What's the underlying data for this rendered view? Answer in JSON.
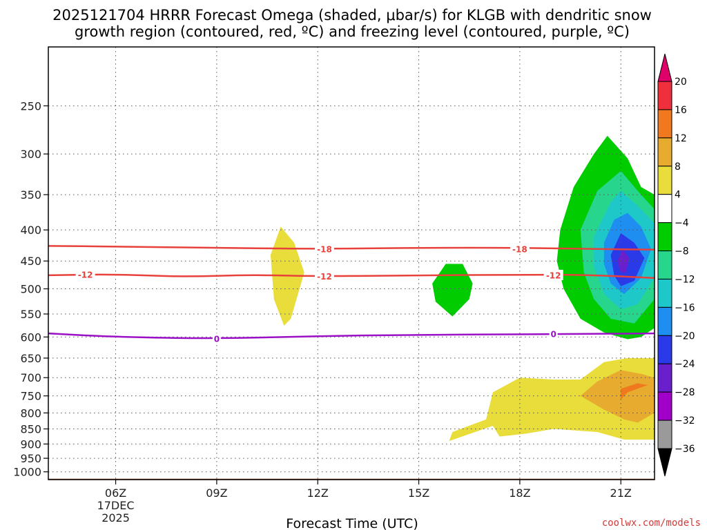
{
  "title_line1": "2025121704 HRRR Forecast Omega (shaded, μbar/s) for KLGB with dendritic snow",
  "title_line2": "growth region (contoured, red, ºC) and freezing level (contoured, purple, ºC)",
  "credit": "coolwx.com/models",
  "chart_data": {
    "type": "time-height cross-section",
    "xlabel": "Forecast Time (UTC)",
    "x_ticks": [
      {
        "hour": 6,
        "label": "06Z",
        "date_line1": "17DEC",
        "date_line2": "2025"
      },
      {
        "hour": 9,
        "label": "09Z"
      },
      {
        "hour": 12,
        "label": "12Z"
      },
      {
        "hour": 15,
        "label": "15Z"
      },
      {
        "hour": 18,
        "label": "18Z"
      },
      {
        "hour": 21,
        "label": "21Z"
      }
    ],
    "xlim": [
      4,
      22
    ],
    "y_scale": "log",
    "y_reversed": true,
    "ylim": [
      1030,
      200
    ],
    "y_ticks": [
      250,
      300,
      350,
      400,
      450,
      500,
      550,
      600,
      650,
      700,
      750,
      800,
      850,
      900,
      950,
      1000
    ],
    "grid": true,
    "colorbar": {
      "levels": [
        20,
        16,
        12,
        8,
        4,
        -4,
        -8,
        -12,
        -16,
        -20,
        -24,
        -28,
        -32,
        -36
      ],
      "colors": [
        "#ef2f3c",
        "#f0781e",
        "#e7ab2f",
        "#e8dd3b",
        "#ffffff",
        "#00cc00",
        "#28d58c",
        "#1ec8c8",
        "#1e8ff0",
        "#2a3ae8",
        "#6a1fcc",
        "#a000c8",
        "#9a9a9a"
      ],
      "top_extend_color": "#e0006a",
      "bottom_extend_color": "#000000"
    },
    "ground_color": "#a0522d",
    "omega_regions": [
      {
        "value_range": [
          4,
          8
        ],
        "points": [
          [
            10.6,
            440
          ],
          [
            10.9,
            395
          ],
          [
            11.3,
            420
          ],
          [
            11.6,
            470
          ],
          [
            11.2,
            560
          ],
          [
            11.0,
            575
          ],
          [
            10.7,
            520
          ]
        ]
      },
      {
        "value_range": [
          -8,
          -4
        ],
        "points": [
          [
            15.4,
            490
          ],
          [
            15.8,
            455
          ],
          [
            16.3,
            455
          ],
          [
            16.6,
            490
          ],
          [
            16.5,
            520
          ],
          [
            16.0,
            555
          ],
          [
            15.5,
            525
          ]
        ]
      },
      {
        "value_range": [
          -8,
          -4
        ],
        "points": [
          [
            19.2,
            400
          ],
          [
            19.6,
            340
          ],
          [
            20.2,
            300
          ],
          [
            20.6,
            280
          ],
          [
            21.2,
            305
          ],
          [
            21.6,
            340
          ],
          [
            22,
            350
          ],
          [
            22,
            580
          ],
          [
            21.6,
            600
          ],
          [
            21.2,
            605
          ],
          [
            20.5,
            590
          ],
          [
            19.8,
            560
          ],
          [
            19.3,
            500
          ],
          [
            19.1,
            450
          ]
        ]
      },
      {
        "value_range": [
          -12,
          -8
        ],
        "points": [
          [
            19.8,
            400
          ],
          [
            20.3,
            345
          ],
          [
            21.0,
            320
          ],
          [
            21.6,
            350
          ],
          [
            22,
            370
          ],
          [
            22,
            520
          ],
          [
            21.4,
            570
          ],
          [
            20.7,
            560
          ],
          [
            20.2,
            520
          ],
          [
            19.9,
            470
          ]
        ]
      },
      {
        "value_range": [
          -16,
          -12
        ],
        "points": [
          [
            20.2,
            410
          ],
          [
            20.7,
            360
          ],
          [
            21.0,
            345
          ],
          [
            21.5,
            365
          ],
          [
            22,
            390
          ],
          [
            22,
            480
          ],
          [
            21.5,
            530
          ],
          [
            21.0,
            540
          ],
          [
            20.5,
            510
          ],
          [
            20.2,
            460
          ]
        ]
      },
      {
        "value_range": [
          -20,
          -16
        ],
        "points": [
          [
            20.5,
            420
          ],
          [
            20.8,
            385
          ],
          [
            21.2,
            375
          ],
          [
            21.6,
            395
          ],
          [
            21.9,
            430
          ],
          [
            21.6,
            480
          ],
          [
            21.1,
            510
          ],
          [
            20.7,
            490
          ],
          [
            20.5,
            455
          ]
        ]
      },
      {
        "value_range": [
          -24,
          -20
        ],
        "points": [
          [
            20.7,
            440
          ],
          [
            21.0,
            405
          ],
          [
            21.4,
            420
          ],
          [
            21.7,
            445
          ],
          [
            21.4,
            485
          ],
          [
            21.0,
            495
          ],
          [
            20.8,
            475
          ]
        ]
      },
      {
        "value_range": [
          -28,
          -24
        ],
        "points": [
          [
            20.9,
            450
          ],
          [
            21.05,
            430
          ],
          [
            21.25,
            445
          ],
          [
            21.15,
            470
          ],
          [
            21.0,
            470
          ]
        ]
      },
      {
        "value_range": [
          4,
          8
        ],
        "points": [
          [
            15.9,
            890
          ],
          [
            17.2,
            840
          ],
          [
            17.4,
            875
          ],
          [
            18.2,
            865
          ],
          [
            19.0,
            850
          ],
          [
            20.3,
            860
          ],
          [
            21.1,
            885
          ],
          [
            22,
            885
          ],
          [
            22,
            650
          ],
          [
            21.2,
            650
          ],
          [
            20.5,
            660
          ],
          [
            19.8,
            705
          ],
          [
            19.0,
            705
          ],
          [
            18.0,
            700
          ],
          [
            17.2,
            740
          ],
          [
            17.0,
            820
          ],
          [
            16.0,
            860
          ]
        ]
      },
      {
        "value_range": [
          8,
          12
        ],
        "points": [
          [
            19.8,
            750
          ],
          [
            20.3,
            710
          ],
          [
            21.0,
            680
          ],
          [
            21.6,
            690
          ],
          [
            22,
            700
          ],
          [
            22,
            800
          ],
          [
            21.5,
            830
          ],
          [
            21.1,
            820
          ],
          [
            20.5,
            790
          ]
        ]
      },
      {
        "value_range": [
          12,
          16
        ],
        "points": [
          [
            21.0,
            730
          ],
          [
            21.5,
            715
          ],
          [
            21.8,
            720
          ],
          [
            21.2,
            740
          ],
          [
            21.0,
            760
          ]
        ]
      }
    ],
    "dendritic_contours": [
      {
        "value": -18,
        "points": [
          [
            4,
            425
          ],
          [
            6,
            426
          ],
          [
            9,
            428
          ],
          [
            12,
            430
          ],
          [
            15,
            428
          ],
          [
            18,
            428
          ],
          [
            20,
            430
          ],
          [
            22,
            431
          ]
        ],
        "labels": [
          {
            "x": 12.2,
            "y": 430
          },
          {
            "x": 18,
            "y": 430
          }
        ]
      },
      {
        "value": -12,
        "points": [
          [
            4,
            475
          ],
          [
            6,
            473
          ],
          [
            8,
            478
          ],
          [
            10,
            474
          ],
          [
            12,
            477
          ],
          [
            15,
            475
          ],
          [
            18,
            474
          ],
          [
            20,
            474
          ],
          [
            22,
            480
          ]
        ],
        "labels": [
          {
            "x": 5.1,
            "y": 474
          },
          {
            "x": 12.2,
            "y": 477
          },
          {
            "x": 19.0,
            "y": 475
          }
        ]
      }
    ],
    "freezing_level": {
      "value": 0,
      "points": [
        [
          4,
          592
        ],
        [
          6,
          600
        ],
        [
          9,
          604
        ],
        [
          12,
          598
        ],
        [
          15,
          595
        ],
        [
          18,
          594
        ],
        [
          20,
          593
        ],
        [
          22,
          592
        ]
      ],
      "labels": [
        {
          "x": 9.0,
          "y": 604
        },
        {
          "x": 19.0,
          "y": 593
        }
      ]
    }
  }
}
